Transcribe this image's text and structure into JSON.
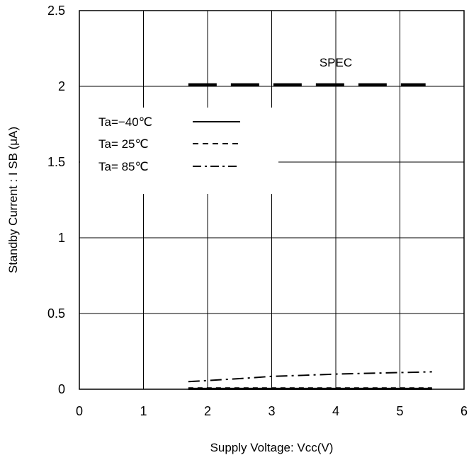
{
  "chart_data": {
    "type": "line",
    "xlabel": "Supply Voltage: Vcc(V)",
    "ylabel": "Standby Current : I SB (μA)",
    "xlim": [
      0,
      6
    ],
    "ylim": [
      0,
      2.5
    ],
    "xticks": [
      "0",
      "1",
      "2",
      "3",
      "4",
      "5",
      "6"
    ],
    "yticks": [
      "0",
      "0.5",
      "1",
      "1.5",
      "2",
      "2.5"
    ],
    "grid": true,
    "legend_position": "top-left",
    "annotation": "SPEC",
    "spec": {
      "x": [
        1.7,
        5.4
      ],
      "y": [
        2.01,
        2.01
      ]
    },
    "series": [
      {
        "name": "Ta=−40℃",
        "style": "solid",
        "x": [
          1.7,
          2.5,
          3.5,
          4.5,
          5.5
        ],
        "y": [
          0.003,
          0.003,
          0.003,
          0.003,
          0.003
        ]
      },
      {
        "name": "Ta= 25℃",
        "style": "dashed",
        "x": [
          1.7,
          2.5,
          3.5,
          4.5,
          5.5
        ],
        "y": [
          0.006,
          0.006,
          0.006,
          0.006,
          0.006
        ]
      },
      {
        "name": "Ta= 85℃",
        "style": "dashdot",
        "x": [
          1.7,
          2.5,
          3.0,
          3.5,
          4.0,
          4.5,
          5.0,
          5.5
        ],
        "y": [
          0.05,
          0.07,
          0.085,
          0.092,
          0.1,
          0.105,
          0.11,
          0.115
        ]
      }
    ]
  }
}
